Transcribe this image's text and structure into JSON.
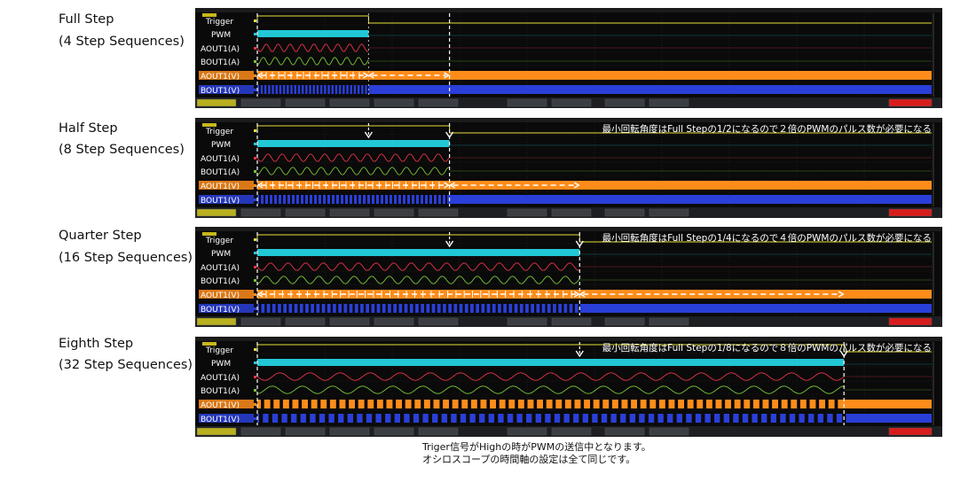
{
  "rows": [
    {
      "title": "Full Step",
      "subtitle": "(4 Step Sequences)",
      "annotation": "",
      "pwm_end": 0.165,
      "dc_end": 0.285,
      "aout_v_arrows": 2,
      "pulse_pitch": 4.2
    },
    {
      "title": "Half Step",
      "subtitle": "(8 Step Sequences)",
      "annotation": "最小回転角度はFull Stepの1/2になるので２倍のPWMのパルス数が必要になる",
      "pwm_end": 0.285,
      "dc_end": 0.478,
      "aout_v_arrows": 2,
      "pulse_pitch": 5.0
    },
    {
      "title": "Quarter Step",
      "subtitle": "(16 Step Sequences)",
      "annotation": "最小回転角度はFull Stepの1/4になるので４倍のPWMのパルス数が必要になる",
      "pwm_end": 0.478,
      "dc_end": 0.87,
      "aout_v_arrows": 2,
      "pulse_pitch": 6.2
    },
    {
      "title": "Eighth Step",
      "subtitle": "(32 Step Sequences)",
      "annotation": "最小回転角度はFull Stepの1/8になるので８倍のPWMのパルス数が必要になる",
      "pwm_end": 0.87,
      "dc_end": 1.0,
      "aout_v_arrows": 0,
      "pulse_pitch": 10.6
    }
  ],
  "channels": [
    {
      "label": "Trigger",
      "color": "#e8e03a"
    },
    {
      "label": "PWM",
      "color": "#22c7d6"
    },
    {
      "label": "AOUT1(A)",
      "color": "#e8354a"
    },
    {
      "label": "BOUT1(A)",
      "color": "#79c83a"
    },
    {
      "label": "AOUT1(V)",
      "color": "#ff8c1a"
    },
    {
      "label": "BOUT1(V)",
      "color": "#2a3fd8"
    }
  ],
  "footer": {
    "line1": "Triger信号がHighの時がPWMの送信中となります。",
    "line2": "オシロスコープの時間軸の設定は全て同じです。"
  }
}
